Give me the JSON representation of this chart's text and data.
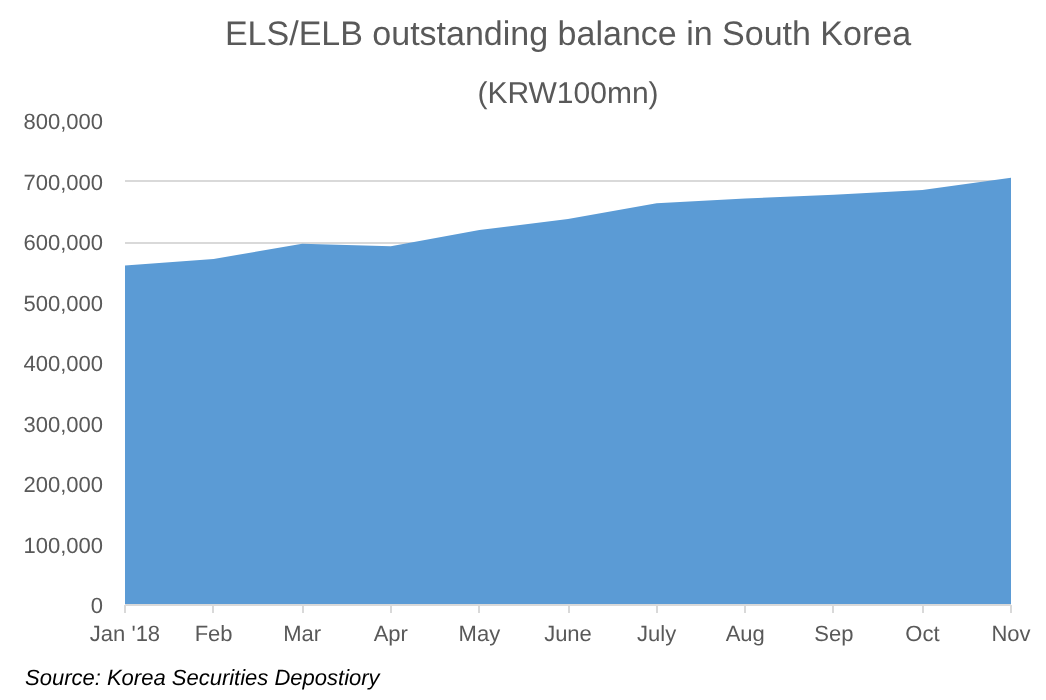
{
  "chart_data": {
    "type": "area",
    "title": "ELS/ELB outstanding balance in South Korea",
    "subtitle": "(KRW100mn)",
    "categories": [
      "Jan '18",
      "Feb",
      "Mar",
      "Apr",
      "May",
      "June",
      "July",
      "Aug",
      "Sep",
      "Oct",
      "Nov"
    ],
    "values": [
      561000,
      572000,
      597000,
      593000,
      620000,
      638000,
      664000,
      672000,
      678000,
      686000,
      706000
    ],
    "color": "#5b9bd5",
    "ylim": [
      0,
      800000
    ],
    "yticks": [
      {
        "value": 0,
        "label": "0"
      },
      {
        "value": 100000,
        "label": "100,000"
      },
      {
        "value": 200000,
        "label": "200,000"
      },
      {
        "value": 300000,
        "label": "300,000"
      },
      {
        "value": 400000,
        "label": "400,000"
      },
      {
        "value": 500000,
        "label": "500,000"
      },
      {
        "value": 600000,
        "label": "600,000"
      },
      {
        "value": 700000,
        "label": "700,000"
      },
      {
        "value": 800000,
        "label": "800,000"
      }
    ],
    "grid": "y",
    "annotations": [
      "Source: Korea Securities Depostiory"
    ]
  }
}
